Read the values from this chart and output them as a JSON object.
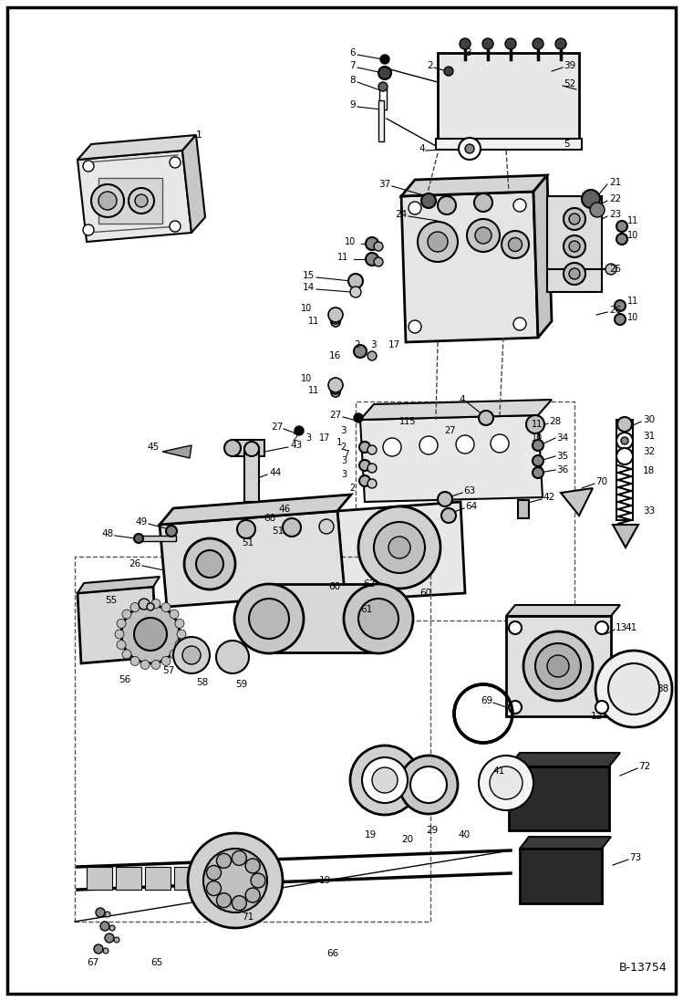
{
  "figure_width": 7.49,
  "figure_height": 10.97,
  "dpi": 100,
  "bg": "#ffffff",
  "fg": "#000000",
  "ref": "B-13754",
  "border_lw": 2.5
}
